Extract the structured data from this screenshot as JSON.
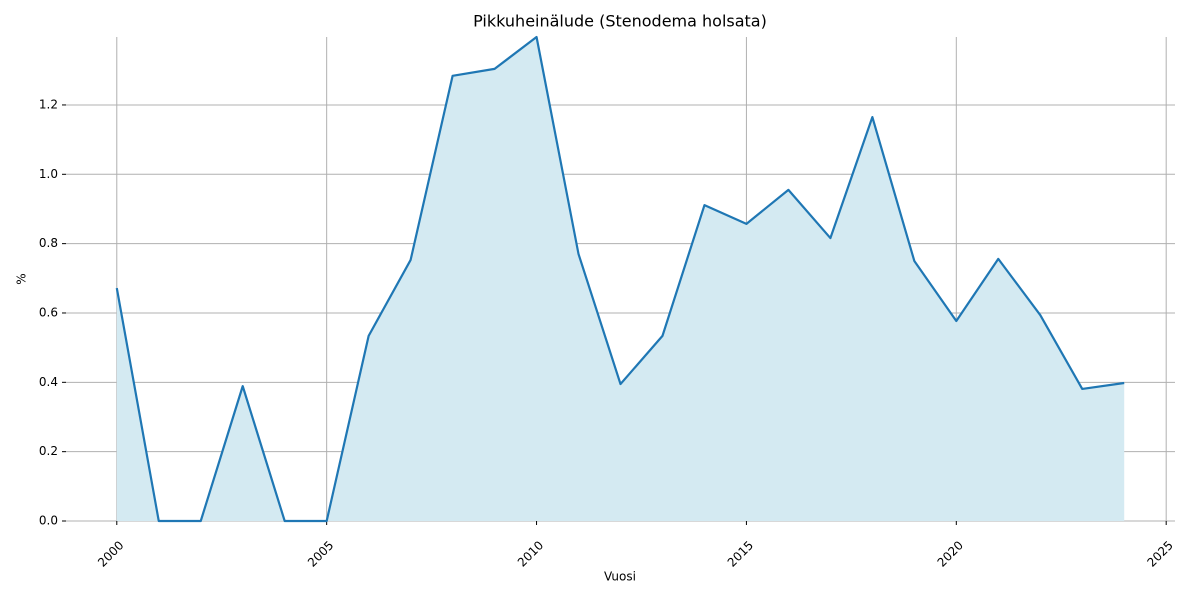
{
  "chart_data": {
    "type": "area-line",
    "title": "Pikkuheinälude (Stenodema holsata)",
    "x_label": "Vuosi",
    "y_label": "%",
    "x": [
      2000,
      2001,
      2002,
      2003,
      2004,
      2005,
      2006,
      2007,
      2008,
      2009,
      2010,
      2011,
      2012,
      2013,
      2014,
      2015,
      2016,
      2017,
      2018,
      2019,
      2020,
      2021,
      2022,
      2023,
      2024
    ],
    "series": [
      {
        "color": "#1f77b4",
        "fill": "#d4eaf2",
        "values": [
          0.672,
          0,
          0,
          0.389,
          0,
          0,
          0.534,
          0.753,
          1.284,
          1.304,
          1.396,
          0.77,
          0.395,
          0.534,
          0.911,
          0.857,
          0.955,
          0.816,
          1.165,
          0.75,
          0.577,
          0.756,
          0.594,
          0.381,
          0.398
        ]
      }
    ],
    "xlim": [
      1998.79,
      2025.21
    ],
    "ylim": [
      0,
      1.396
    ],
    "xticks": [
      2000,
      2005,
      2010,
      2015,
      2020,
      2025
    ],
    "yticks": [
      {
        "value": 0,
        "label": "0.0"
      },
      0.2,
      0.4,
      0.6,
      0.8,
      {
        "value": 1,
        "label": "1.0"
      },
      1.2
    ],
    "grid": true
  }
}
